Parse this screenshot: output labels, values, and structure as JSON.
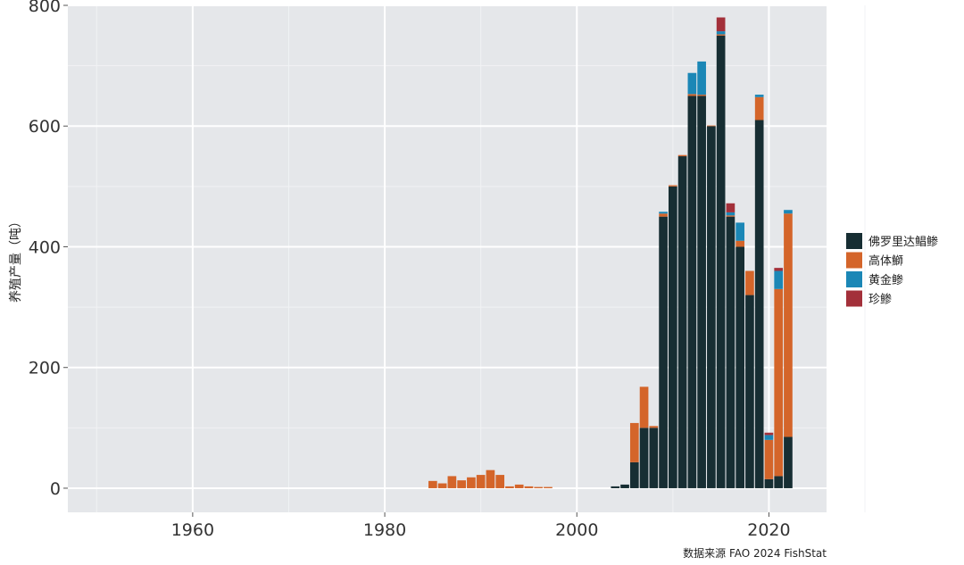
{
  "chart_data": {
    "type": "bar",
    "stacked": true,
    "title": "",
    "xlabel": "",
    "ylabel": "养殖产量（吨）",
    "xlim": [
      1947,
      2026
    ],
    "ylim": [
      -40,
      800
    ],
    "x_ticks": [
      1960,
      1980,
      2000,
      2020
    ],
    "y_ticks": [
      0,
      200,
      400,
      600,
      800
    ],
    "grid": true,
    "legend_position": "right",
    "source_note": "数据来源 FAO 2024 FishStat",
    "colors": {
      "panel": "#e5e7ea",
      "grid_major": "#ffffff",
      "grid_minor": "#f1f2f4"
    },
    "years": [
      1985,
      1986,
      1987,
      1988,
      1989,
      1990,
      1991,
      1992,
      1993,
      1994,
      1995,
      1996,
      1997,
      2004,
      2005,
      2006,
      2007,
      2008,
      2009,
      2010,
      2011,
      2012,
      2013,
      2014,
      2015,
      2016,
      2017,
      2018,
      2019,
      2020,
      2021,
      2022
    ],
    "series": [
      {
        "name": "佛罗里达鲳鲹",
        "color": "#172e33",
        "values": [
          0,
          0,
          0,
          0,
          0,
          0,
          0,
          0,
          0,
          0,
          0,
          0,
          0,
          3,
          6,
          43,
          100,
          100,
          450,
          500,
          550,
          650,
          650,
          600,
          750,
          450,
          400,
          320,
          610,
          15,
          20,
          85
        ]
      },
      {
        "name": "高体鰤",
        "color": "#d4652a",
        "values": [
          12,
          8,
          20,
          13,
          18,
          22,
          30,
          22,
          3,
          6,
          3,
          2,
          2,
          0,
          0,
          65,
          68,
          3,
          5,
          2,
          2,
          3,
          2,
          1,
          2,
          2,
          10,
          40,
          38,
          65,
          310,
          370
        ]
      },
      {
        "name": "黄金鲹",
        "color": "#1b87b6",
        "values": [
          0,
          0,
          0,
          0,
          0,
          0,
          0,
          0,
          0,
          0,
          0,
          0,
          0,
          0,
          0,
          0,
          0,
          0,
          3,
          0,
          0,
          35,
          55,
          0,
          5,
          5,
          30,
          0,
          4,
          8,
          30,
          6
        ]
      },
      {
        "name": "珍鲹",
        "color": "#a3303a",
        "values": [
          0,
          0,
          0,
          0,
          0,
          0,
          0,
          0,
          0,
          0,
          0,
          0,
          0,
          0,
          0,
          0,
          0,
          0,
          0,
          0,
          0,
          0,
          0,
          0,
          23,
          15,
          0,
          0,
          0,
          4,
          5,
          0
        ]
      }
    ]
  }
}
